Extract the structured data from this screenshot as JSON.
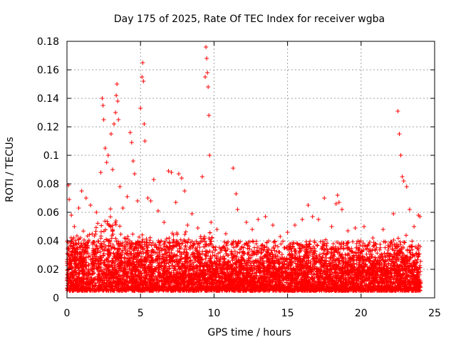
{
  "chart_data": {
    "type": "scatter",
    "title": "Day 175 of 2025, Rate Of TEC Index for receiver wgba",
    "xlabel": "GPS time / hours",
    "ylabel": "ROTI / TECUs",
    "xlim": [
      0,
      25
    ],
    "ylim": [
      0,
      0.18
    ],
    "xticks": [
      0,
      5,
      10,
      15,
      20,
      25
    ],
    "xtick_labels": [
      "0",
      "5",
      "10",
      "15",
      "20",
      "25"
    ],
    "yticks": [
      0,
      0.02,
      0.04,
      0.06,
      0.08,
      0.1,
      0.12,
      0.14,
      0.16,
      0.18
    ],
    "ytick_labels": [
      "0",
      "0.02",
      "0.04",
      "0.06",
      "0.08",
      "0.1",
      "0.12",
      "0.14",
      "0.16",
      "0.18"
    ],
    "grid": true,
    "marker": "plus",
    "color": "#ff0000",
    "series": [
      {
        "name": "ROTI",
        "points": [
          [
            0.1,
            0.079
          ],
          [
            0.15,
            0.069
          ],
          [
            0.3,
            0.058
          ],
          [
            0.5,
            0.05
          ],
          [
            0.8,
            0.063
          ],
          [
            1.0,
            0.075
          ],
          [
            1.3,
            0.07
          ],
          [
            1.6,
            0.065
          ],
          [
            2.0,
            0.06
          ],
          [
            2.3,
            0.088
          ],
          [
            2.4,
            0.14
          ],
          [
            2.45,
            0.135
          ],
          [
            2.5,
            0.125
          ],
          [
            2.6,
            0.105
          ],
          [
            2.7,
            0.095
          ],
          [
            2.8,
            0.1
          ],
          [
            3.0,
            0.115
          ],
          [
            3.1,
            0.09
          ],
          [
            3.2,
            0.122
          ],
          [
            3.3,
            0.13
          ],
          [
            3.35,
            0.142
          ],
          [
            3.4,
            0.15
          ],
          [
            3.45,
            0.138
          ],
          [
            3.5,
            0.125
          ],
          [
            3.6,
            0.078
          ],
          [
            3.8,
            0.063
          ],
          [
            4.1,
            0.071
          ],
          [
            4.3,
            0.116
          ],
          [
            4.4,
            0.109
          ],
          [
            4.5,
            0.096
          ],
          [
            4.6,
            0.087
          ],
          [
            4.8,
            0.068
          ],
          [
            5.0,
            0.133
          ],
          [
            5.1,
            0.155
          ],
          [
            5.15,
            0.165
          ],
          [
            5.2,
            0.152
          ],
          [
            5.25,
            0.122
          ],
          [
            5.3,
            0.11
          ],
          [
            5.5,
            0.07
          ],
          [
            5.7,
            0.068
          ],
          [
            5.9,
            0.083
          ],
          [
            6.2,
            0.061
          ],
          [
            6.6,
            0.053
          ],
          [
            6.9,
            0.089
          ],
          [
            7.1,
            0.088
          ],
          [
            7.4,
            0.067
          ],
          [
            7.6,
            0.087
          ],
          [
            7.8,
            0.084
          ],
          [
            8.0,
            0.075
          ],
          [
            8.2,
            0.051
          ],
          [
            8.5,
            0.059
          ],
          [
            8.9,
            0.049
          ],
          [
            9.2,
            0.085
          ],
          [
            9.4,
            0.155
          ],
          [
            9.45,
            0.176
          ],
          [
            9.5,
            0.168
          ],
          [
            9.55,
            0.158
          ],
          [
            9.6,
            0.148
          ],
          [
            9.65,
            0.128
          ],
          [
            9.7,
            0.1
          ],
          [
            9.8,
            0.053
          ],
          [
            10.2,
            0.048
          ],
          [
            10.8,
            0.045
          ],
          [
            11.3,
            0.091
          ],
          [
            11.5,
            0.073
          ],
          [
            11.6,
            0.062
          ],
          [
            12.2,
            0.053
          ],
          [
            12.6,
            0.048
          ],
          [
            13.0,
            0.055
          ],
          [
            13.5,
            0.057
          ],
          [
            14.0,
            0.051
          ],
          [
            14.5,
            0.043
          ],
          [
            15.0,
            0.046
          ],
          [
            15.5,
            0.051
          ],
          [
            16.0,
            0.055
          ],
          [
            16.4,
            0.065
          ],
          [
            16.7,
            0.057
          ],
          [
            17.1,
            0.055
          ],
          [
            17.5,
            0.07
          ],
          [
            18.0,
            0.05
          ],
          [
            18.3,
            0.066
          ],
          [
            18.4,
            0.072
          ],
          [
            18.5,
            0.067
          ],
          [
            18.7,
            0.062
          ],
          [
            19.1,
            0.047
          ],
          [
            19.6,
            0.049
          ],
          [
            20.2,
            0.05
          ],
          [
            20.8,
            0.042
          ],
          [
            21.5,
            0.048
          ],
          [
            22.2,
            0.059
          ],
          [
            22.5,
            0.131
          ],
          [
            22.6,
            0.115
          ],
          [
            22.7,
            0.1
          ],
          [
            22.8,
            0.085
          ],
          [
            22.9,
            0.082
          ],
          [
            23.1,
            0.078
          ],
          [
            23.3,
            0.062
          ],
          [
            23.6,
            0.05
          ],
          [
            23.9,
            0.058
          ],
          [
            24.0,
            0.057
          ]
        ],
        "envelope": [
          [
            0.0,
            0.045
          ],
          [
            0.5,
            0.048
          ],
          [
            1.0,
            0.052
          ],
          [
            1.5,
            0.05
          ],
          [
            2.0,
            0.055
          ],
          [
            2.5,
            0.062
          ],
          [
            3.0,
            0.065
          ],
          [
            3.5,
            0.06
          ],
          [
            4.0,
            0.048
          ],
          [
            4.5,
            0.052
          ],
          [
            5.0,
            0.05
          ],
          [
            5.5,
            0.045
          ],
          [
            6.0,
            0.042
          ],
          [
            6.5,
            0.045
          ],
          [
            7.0,
            0.047
          ],
          [
            7.5,
            0.05
          ],
          [
            8.0,
            0.048
          ],
          [
            8.5,
            0.045
          ],
          [
            9.0,
            0.047
          ],
          [
            9.5,
            0.07
          ],
          [
            10.0,
            0.038
          ],
          [
            10.5,
            0.04
          ],
          [
            11.0,
            0.038
          ],
          [
            11.5,
            0.042
          ],
          [
            12.0,
            0.04
          ],
          [
            12.5,
            0.038
          ],
          [
            13.0,
            0.04
          ],
          [
            13.5,
            0.042
          ],
          [
            14.0,
            0.04
          ],
          [
            14.5,
            0.038
          ],
          [
            15.0,
            0.04
          ],
          [
            15.5,
            0.042
          ],
          [
            16.0,
            0.045
          ],
          [
            16.5,
            0.043
          ],
          [
            17.0,
            0.04
          ],
          [
            17.5,
            0.042
          ],
          [
            18.0,
            0.044
          ],
          [
            18.5,
            0.046
          ],
          [
            19.0,
            0.042
          ],
          [
            19.5,
            0.04
          ],
          [
            20.0,
            0.038
          ],
          [
            20.5,
            0.037
          ],
          [
            21.0,
            0.036
          ],
          [
            21.5,
            0.038
          ],
          [
            22.0,
            0.04
          ],
          [
            22.5,
            0.05
          ],
          [
            23.0,
            0.045
          ],
          [
            23.5,
            0.04
          ],
          [
            24.0,
            0.038
          ]
        ],
        "floor": 0.005
      }
    ]
  }
}
